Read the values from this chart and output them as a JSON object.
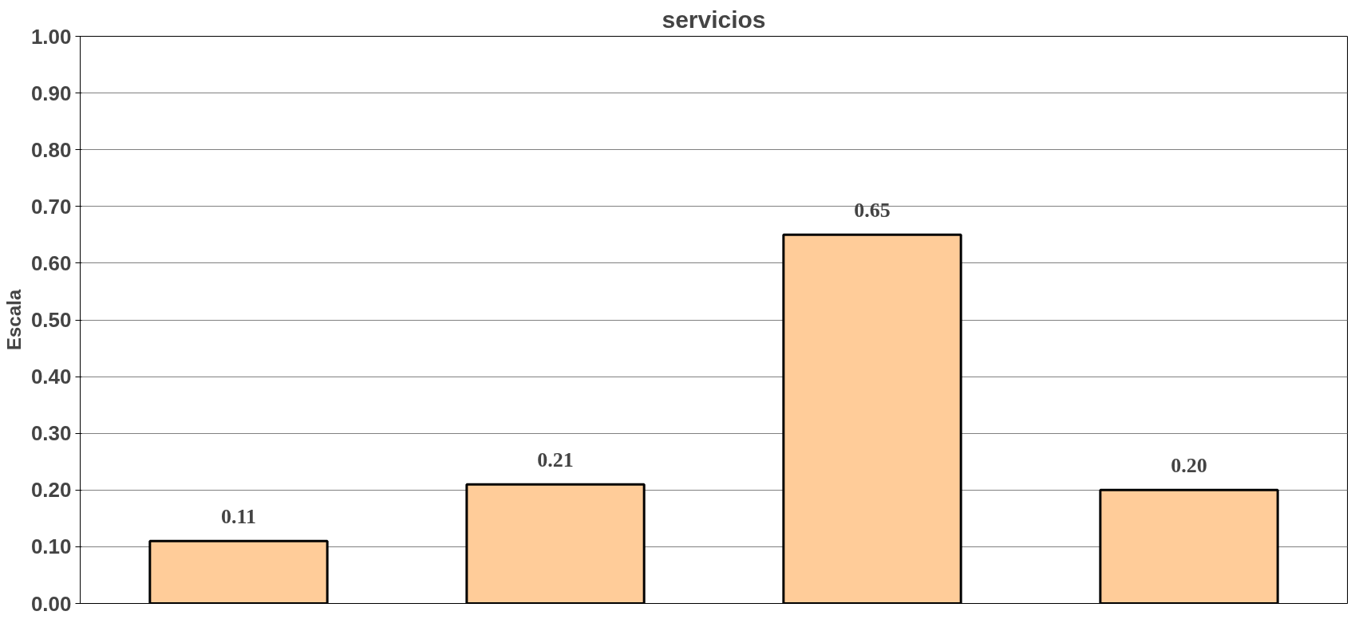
{
  "chart_data": {
    "type": "bar",
    "title": "servicios",
    "ylabel": "Escala",
    "categories": [
      null,
      null,
      null,
      null
    ],
    "values": [
      0.11,
      0.21,
      0.65,
      0.2
    ],
    "value_labels": [
      "0.11",
      "0.21",
      "0.65",
      "0.20"
    ],
    "color": "#ffcc99",
    "ylim": [
      0,
      1
    ],
    "yticks": [
      {
        "value": 0,
        "label": "0.00"
      },
      {
        "value": 0.1,
        "label": "0.10"
      },
      {
        "value": 0.2,
        "label": "0.20"
      },
      {
        "value": 0.3,
        "label": "0.30"
      },
      {
        "value": 0.4,
        "label": "0.40"
      },
      {
        "value": 0.5,
        "label": "0.50"
      },
      {
        "value": 0.6,
        "label": "0.60"
      },
      {
        "value": 0.7,
        "label": "0.70"
      },
      {
        "value": 0.8,
        "label": "0.80"
      },
      {
        "value": 0.9,
        "label": "0.90"
      },
      {
        "value": 1,
        "label": "1.00"
      }
    ],
    "grid": "y",
    "tick_labels": "y"
  }
}
